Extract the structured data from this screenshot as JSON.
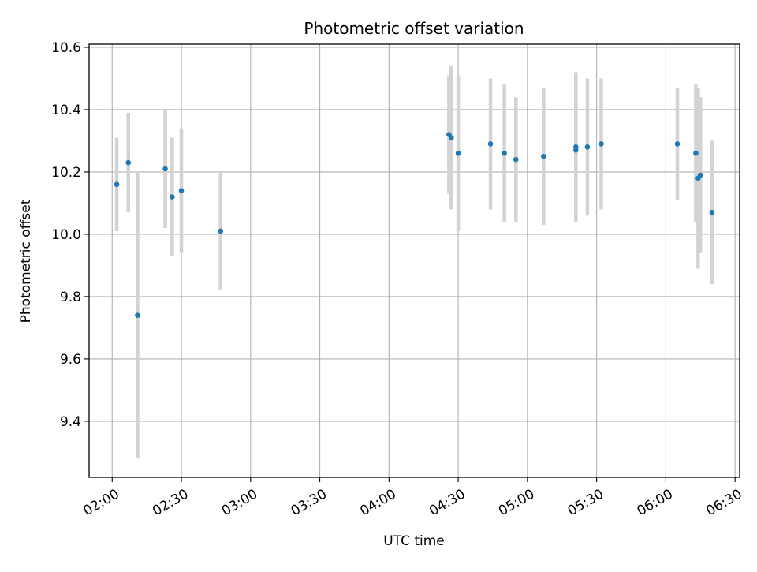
{
  "chart_data": {
    "type": "scatter",
    "title": "Photometric offset variation",
    "xlabel": "UTC time",
    "ylabel": "Photometric offset",
    "grid": true,
    "x_ticks": [
      "02:00",
      "02:30",
      "03:00",
      "03:30",
      "04:00",
      "04:30",
      "05:00",
      "05:30",
      "06:00",
      "06:30"
    ],
    "y_ticks": [
      "9.4",
      "9.6",
      "9.8",
      "10.0",
      "10.2",
      "10.4",
      "10.6"
    ],
    "xlim": [
      "01:50",
      "06:32"
    ],
    "ylim": [
      9.22,
      10.61
    ],
    "colors": {
      "point": "#1f77b4",
      "errorbar": "#d3d3d3",
      "grid": "#b0b0b0"
    },
    "points": [
      {
        "x": "02:02",
        "y": 10.16,
        "yerr": 0.15
      },
      {
        "x": "02:07",
        "y": 10.23,
        "yerr": 0.16
      },
      {
        "x": "02:11",
        "y": 9.74,
        "yerr": 0.46
      },
      {
        "x": "02:23",
        "y": 10.21,
        "yerr": 0.19
      },
      {
        "x": "02:26",
        "y": 10.12,
        "yerr": 0.19
      },
      {
        "x": "02:30",
        "y": 10.14,
        "yerr": 0.2
      },
      {
        "x": "02:47",
        "y": 10.01,
        "yerr": 0.19
      },
      {
        "x": "04:26",
        "y": 10.32,
        "yerr": 0.19
      },
      {
        "x": "04:27",
        "y": 10.31,
        "yerr": 0.23
      },
      {
        "x": "04:30",
        "y": 10.26,
        "yerr": 0.25
      },
      {
        "x": "04:44",
        "y": 10.29,
        "yerr": 0.21
      },
      {
        "x": "04:50",
        "y": 10.26,
        "yerr": 0.22
      },
      {
        "x": "04:55",
        "y": 10.24,
        "yerr": 0.2
      },
      {
        "x": "05:07",
        "y": 10.25,
        "yerr": 0.22
      },
      {
        "x": "05:21",
        "y": 10.27,
        "yerr": 0.22
      },
      {
        "x": "05:21",
        "y": 10.28,
        "yerr": 0.24
      },
      {
        "x": "05:26",
        "y": 10.28,
        "yerr": 0.22
      },
      {
        "x": "05:32",
        "y": 10.29,
        "yerr": 0.21
      },
      {
        "x": "06:05",
        "y": 10.29,
        "yerr": 0.18
      },
      {
        "x": "06:13",
        "y": 10.26,
        "yerr": 0.22
      },
      {
        "x": "06:14",
        "y": 10.18,
        "yerr": 0.29
      },
      {
        "x": "06:15",
        "y": 10.19,
        "yerr": 0.25
      },
      {
        "x": "06:20",
        "y": 10.07,
        "yerr": 0.23
      }
    ]
  }
}
